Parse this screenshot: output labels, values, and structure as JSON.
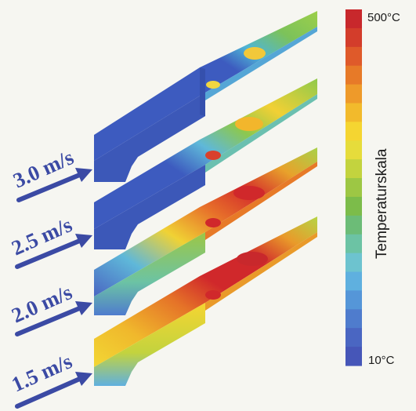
{
  "figure": {
    "colors": {
      "background": "#f6f6f1",
      "arrow": "#3b4aa4",
      "label": "#3b4aa4"
    },
    "speeds": [
      {
        "label": "3.0 m/s",
        "profile": "cold"
      },
      {
        "label": "2.5 m/s",
        "profile": "cool"
      },
      {
        "label": "2.0 m/s",
        "profile": "warm"
      },
      {
        "label": "1.5 m/s",
        "profile": "hot"
      }
    ]
  },
  "scale": {
    "title": "Temperaturskala",
    "max_label": "500°C",
    "min_label": "10°C",
    "colors": [
      "#c8282c",
      "#d33d2b",
      "#df5a2a",
      "#e77a28",
      "#ee9a2a",
      "#f2ba2c",
      "#f5d531",
      "#e6dc3b",
      "#c3d33e",
      "#9dc744",
      "#7cbc4a",
      "#6cbc77",
      "#6cc3a4",
      "#6dc3cf",
      "#5fb0df",
      "#5596d8",
      "#4f7ccd",
      "#4a66c2",
      "#4656b8"
    ]
  }
}
